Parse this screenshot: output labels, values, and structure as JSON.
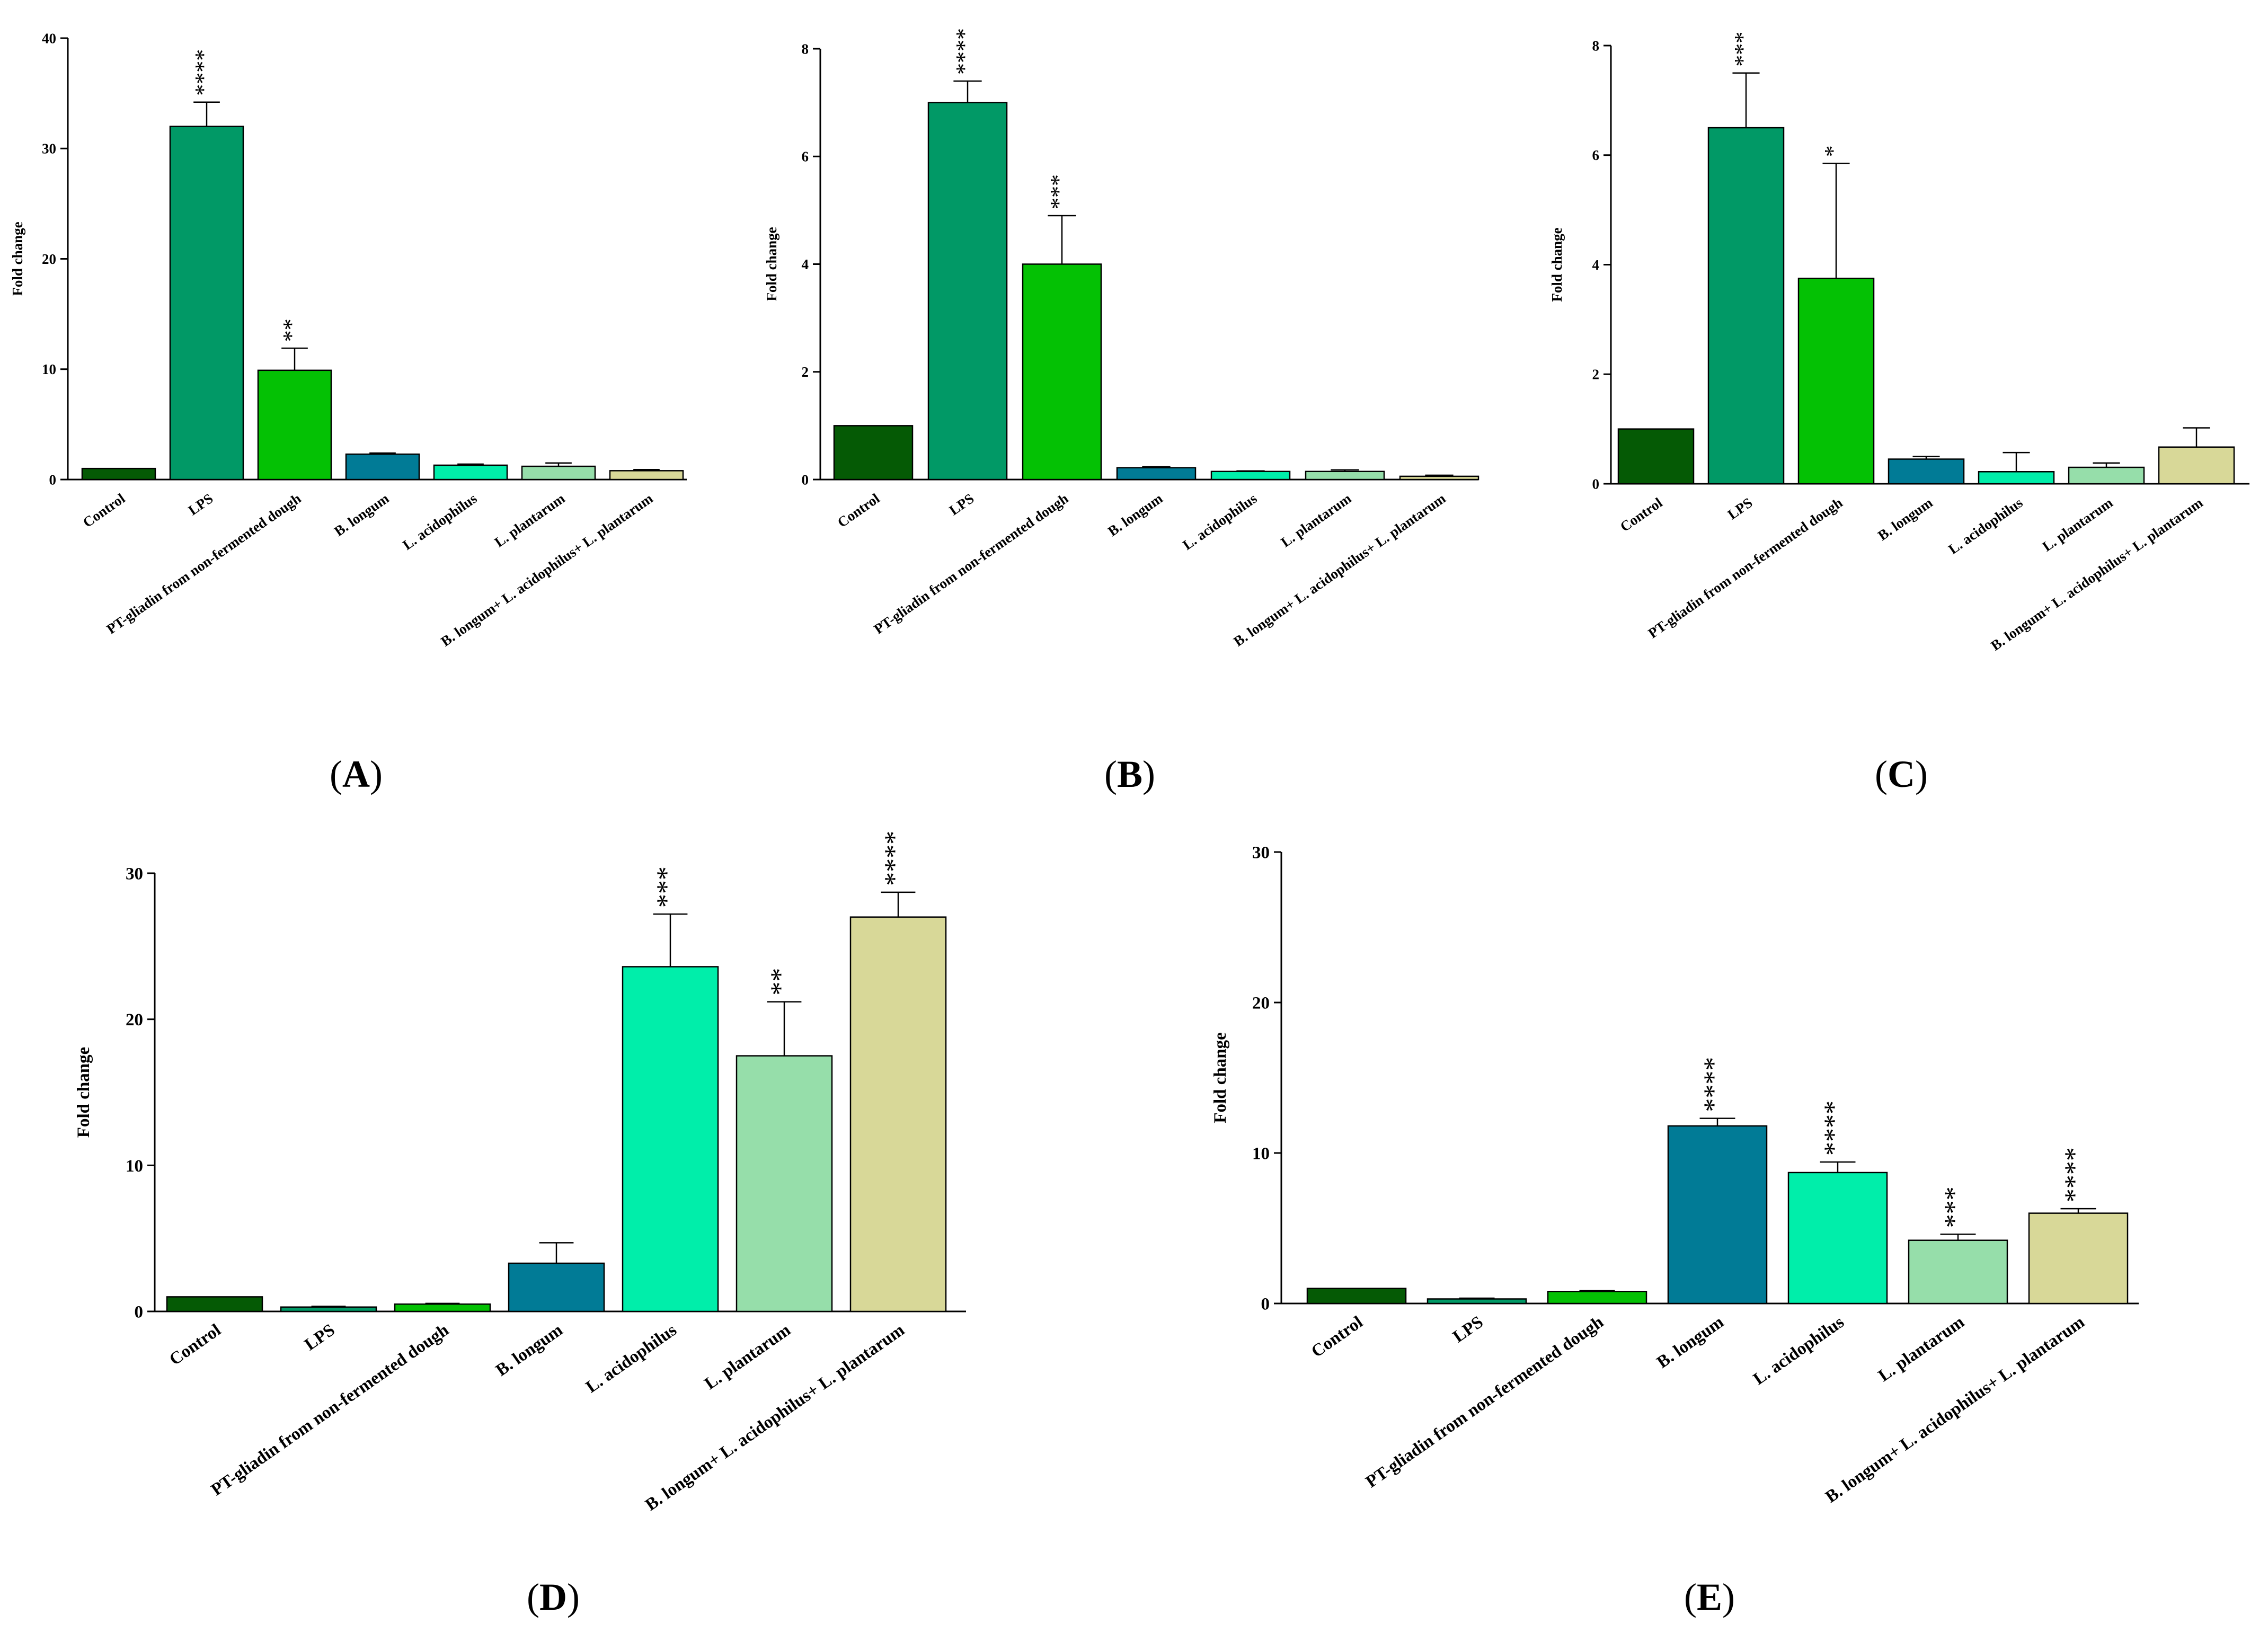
{
  "chart_data": [
    {
      "type": "bar",
      "panel": "A",
      "panel_label": "A",
      "ylabel": "Fold change",
      "ylim": [
        0,
        40
      ],
      "yticks": [
        0,
        10,
        20,
        30,
        40
      ],
      "categories": [
        "Control",
        "LPS",
        "PT-gliadin from non-fermented dough",
        "B. longum",
        "L. acidophilus",
        "L. plantarum",
        "B. longum+ L. acidophilus+ L. plantarum"
      ],
      "values": [
        1.0,
        32.0,
        9.9,
        2.3,
        1.3,
        1.2,
        0.8
      ],
      "errors": [
        0.0,
        2.2,
        2.0,
        0.1,
        0.1,
        0.3,
        0.1
      ],
      "significance": [
        "",
        "****",
        "**",
        "",
        "",
        "",
        ""
      ]
    },
    {
      "type": "bar",
      "panel": "B",
      "panel_label": "B",
      "ylabel": "Fold change",
      "ylim": [
        0,
        8
      ],
      "yticks": [
        0,
        2,
        4,
        6,
        8
      ],
      "categories": [
        "Control",
        "LPS",
        "PT-gliadin from non-fermented dough",
        "B. longum",
        "L. acidophilus",
        "L. plantarum",
        "B. longum+ L. acidophilus+ L. plantarum"
      ],
      "values": [
        1.0,
        7.0,
        4.0,
        0.22,
        0.15,
        0.15,
        0.06
      ],
      "errors": [
        0.0,
        0.4,
        0.9,
        0.02,
        0.01,
        0.03,
        0.02
      ],
      "significance": [
        "",
        "****",
        "***",
        "",
        "",
        "",
        ""
      ]
    },
    {
      "type": "bar",
      "panel": "C",
      "panel_label": "C",
      "ylabel": "Fold change",
      "ylim": [
        0,
        8
      ],
      "yticks": [
        0,
        2,
        4,
        6,
        8
      ],
      "categories": [
        "Control",
        "LPS",
        "PT-gliadin from non-fermented dough",
        "B. longum",
        "L. acidophilus",
        "L. plantarum",
        "B. longum+ L. acidophilus+ L. plantarum"
      ],
      "values": [
        1.0,
        6.5,
        3.75,
        0.45,
        0.22,
        0.3,
        0.67
      ],
      "errors": [
        0.0,
        1.0,
        2.1,
        0.05,
        0.35,
        0.08,
        0.35
      ],
      "significance": [
        "",
        "***",
        "*",
        "",
        "",
        "",
        ""
      ]
    },
    {
      "type": "bar",
      "panel": "D",
      "panel_label": "D",
      "ylabel": "Fold change",
      "ylim": [
        0,
        30
      ],
      "yticks": [
        0,
        10,
        20,
        30
      ],
      "categories": [
        "Control",
        "LPS",
        "PT-gliadin from non-fermented dough",
        "B. longum",
        "L. acidophilus",
        "L. plantarum",
        "B. longum+ L. acidophilus+ L. plantarum"
      ],
      "values": [
        1.0,
        0.3,
        0.5,
        3.3,
        23.6,
        17.5,
        27.0
      ],
      "errors": [
        0.0,
        0.05,
        0.05,
        1.4,
        3.6,
        3.7,
        1.7
      ],
      "significance": [
        "",
        "",
        "",
        "",
        "***",
        "**",
        "****"
      ]
    },
    {
      "type": "bar",
      "panel": "E",
      "panel_label": "E",
      "ylabel": "Fold change",
      "ylim": [
        0,
        30
      ],
      "yticks": [
        0,
        10,
        20,
        30
      ],
      "categories": [
        "Control",
        "LPS",
        "PT-gliadin from non-fermented dough",
        "B. longum",
        "L. acidophilus",
        "L. plantarum",
        "B. longum+ L. acidophilus+ L. plantarum"
      ],
      "values": [
        1.0,
        0.3,
        0.8,
        11.8,
        8.7,
        4.2,
        6.0
      ],
      "errors": [
        0.0,
        0.05,
        0.05,
        0.5,
        0.7,
        0.4,
        0.3
      ],
      "significance": [
        "",
        "",
        "",
        "****",
        "****",
        "***",
        "****"
      ]
    }
  ],
  "colors": {
    "bars": [
      "#055a05",
      "#019966",
      "#04c104",
      "#017b96",
      "#00eeaa",
      "#96deaa",
      "#d8d898"
    ],
    "stroke": "#000000"
  }
}
